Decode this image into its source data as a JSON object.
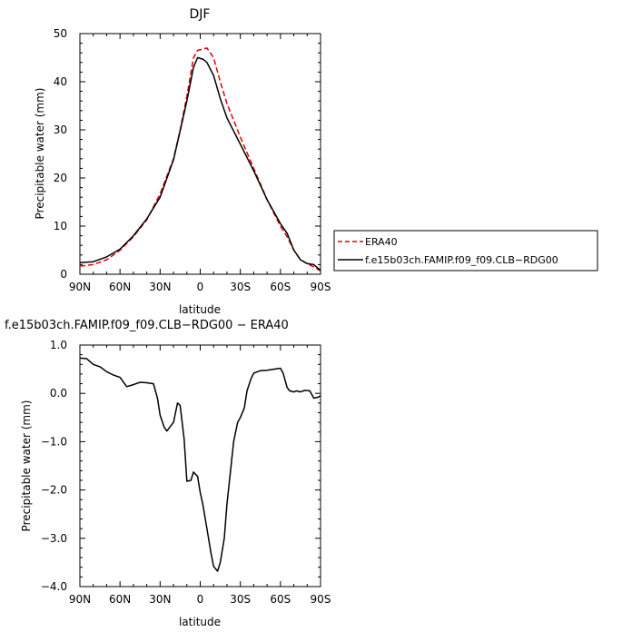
{
  "chart_data": [
    {
      "type": "line",
      "title": "DJF",
      "xlabel": "latitude",
      "ylabel": "Precipitable water (mm)",
      "xlim": [
        90,
        -90
      ],
      "ylim": [
        0,
        50
      ],
      "xticks": [
        90,
        60,
        30,
        0,
        -30,
        -60,
        -90
      ],
      "xtick_labels": [
        "90N",
        "60N",
        "30N",
        "0",
        "30S",
        "60S",
        "90S"
      ],
      "yticks": [
        0,
        10,
        20,
        30,
        40,
        50
      ],
      "ytick_labels": [
        "0",
        "10",
        "20",
        "30",
        "40",
        "50"
      ],
      "legend_position": "right-outside",
      "series": [
        {
          "name": "ERA40",
          "color": "#e60000",
          "dash": "dashed",
          "x": [
            90,
            80,
            70,
            60,
            50,
            40,
            30,
            20,
            15,
            10,
            5,
            2,
            -2,
            -5,
            -10,
            -15,
            -20,
            -30,
            -40,
            -50,
            -60,
            -65,
            -70,
            -75,
            -80,
            -85,
            -90
          ],
          "y": [
            1.7,
            2.0,
            3.0,
            5.0,
            7.8,
            11.3,
            16.7,
            24.0,
            30.0,
            37.0,
            45.0,
            46.5,
            46.8,
            47.0,
            45.0,
            40.0,
            35.5,
            28.5,
            22.0,
            15.5,
            10.0,
            7.8,
            5.0,
            3.0,
            2.2,
            1.5,
            0.7
          ]
        },
        {
          "name": "f.e15b03ch.FAMIP.f09_f09.CLB−RDG00",
          "color": "#000000",
          "dash": "solid",
          "x": [
            90,
            80,
            70,
            60,
            50,
            40,
            30,
            20,
            15,
            10,
            5,
            2,
            -2,
            -5,
            -10,
            -15,
            -20,
            -30,
            -40,
            -50,
            -60,
            -65,
            -70,
            -75,
            -80,
            -85,
            -90
          ],
          "y": [
            2.4,
            2.6,
            3.6,
            5.2,
            8.0,
            11.5,
            16.0,
            23.8,
            29.8,
            36.0,
            43.0,
            45.0,
            44.7,
            44.0,
            41.3,
            36.5,
            32.5,
            27.0,
            21.5,
            15.5,
            10.5,
            8.5,
            5.0,
            3.0,
            2.2,
            2.0,
            0.8
          ]
        }
      ]
    },
    {
      "type": "line",
      "title": "f.e15b03ch.FAMIP.f09_f09.CLB−RDG00 − ERA40",
      "xlabel": "latitude",
      "ylabel": "Precipitable water (mm)",
      "xlim": [
        90,
        -90
      ],
      "ylim": [
        -4.0,
        1.0
      ],
      "xticks": [
        90,
        60,
        30,
        0,
        -30,
        -60,
        -90
      ],
      "xtick_labels": [
        "90N",
        "60N",
        "30N",
        "0",
        "30S",
        "60S",
        "90S"
      ],
      "yticks": [
        1.0,
        0.0,
        -1.0,
        -2.0,
        -3.0,
        -4.0
      ],
      "ytick_labels": [
        "1.0",
        "0.0",
        "−1.0",
        "−2.0",
        "−3.0",
        "−4.0"
      ],
      "series": [
        {
          "color": "#000000",
          "dash": "solid",
          "x": [
            90,
            85,
            80,
            75,
            70,
            65,
            60,
            55,
            50,
            45,
            40,
            35,
            32,
            30,
            27,
            25,
            20,
            17,
            15,
            12,
            10,
            7,
            5,
            2,
            0,
            -2,
            -5,
            -8,
            -10,
            -13,
            -15,
            -18,
            -20,
            -25,
            -28,
            -30,
            -33,
            -35,
            -38,
            -40,
            -45,
            -50,
            -55,
            -60,
            -62,
            -65,
            -67,
            -70,
            -72,
            -75,
            -78,
            -80,
            -82,
            -85,
            -88,
            -90
          ],
          "y": [
            0.73,
            0.72,
            0.6,
            0.55,
            0.45,
            0.38,
            0.33,
            0.14,
            0.18,
            0.23,
            0.22,
            0.2,
            -0.1,
            -0.45,
            -0.7,
            -0.78,
            -0.6,
            -0.2,
            -0.25,
            -0.95,
            -1.82,
            -1.8,
            -1.63,
            -1.72,
            -2.05,
            -2.3,
            -2.8,
            -3.3,
            -3.58,
            -3.68,
            -3.5,
            -3.0,
            -2.3,
            -1.0,
            -0.6,
            -0.5,
            -0.3,
            0.05,
            0.3,
            0.42,
            0.47,
            0.48,
            0.5,
            0.52,
            0.42,
            0.12,
            0.05,
            0.03,
            0.05,
            0.03,
            0.06,
            0.06,
            0.05,
            -0.1,
            -0.08,
            -0.05
          ]
        }
      ]
    }
  ]
}
